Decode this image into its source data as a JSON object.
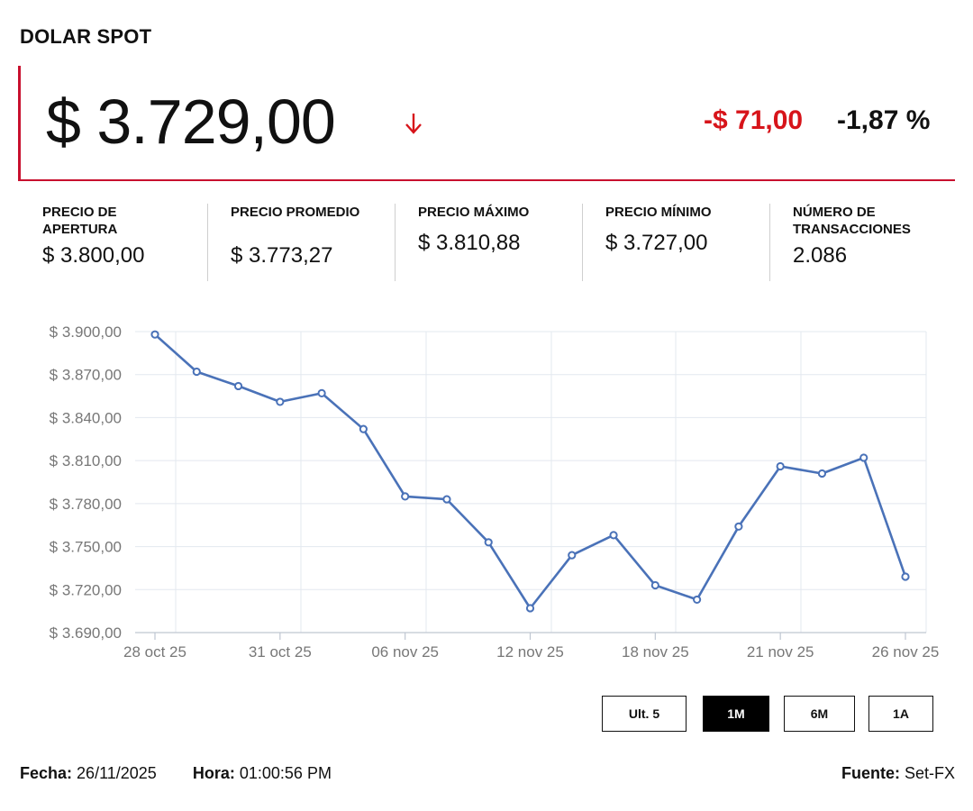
{
  "header": {
    "title": "DOLAR SPOT"
  },
  "price": {
    "value": "$ 3.729,00",
    "direction_icon": "arrow-down-icon",
    "change_abs": "-$ 71,00",
    "change_pct": "-1,87 %",
    "accent_color": "#c8102e",
    "negative_color": "#d7141a"
  },
  "stats": [
    {
      "label": "PRECIO DE APERTURA",
      "value": "$ 3.800,00"
    },
    {
      "label": "PRECIO PROMEDIO",
      "value": "$ 3.773,27"
    },
    {
      "label": "PRECIO MÁXIMO",
      "value": "$ 3.810,88"
    },
    {
      "label": "PRECIO MÍNIMO",
      "value": "$ 3.727,00"
    },
    {
      "label": "NÚMERO DE TRANSACCIONES",
      "value": "2.086"
    }
  ],
  "chart_data": {
    "type": "line",
    "title": "",
    "xlabel": "",
    "ylabel": "",
    "ylim": [
      3690,
      3900
    ],
    "y_ticks": [
      "$ 3.900,00",
      "$ 3.870,00",
      "$ 3.840,00",
      "$ 3.810,00",
      "$ 3.780,00",
      "$ 3.750,00",
      "$ 3.720,00",
      "$ 3.690,00"
    ],
    "y_tick_values": [
      3900,
      3870,
      3840,
      3810,
      3780,
      3750,
      3720,
      3690
    ],
    "x_ticks": [
      "28 oct 25",
      "31 oct 25",
      "06 nov 25",
      "12 nov 25",
      "18 nov 25",
      "21 nov 25",
      "26 nov 25"
    ],
    "x_tick_indices": [
      0,
      3,
      6,
      9,
      12,
      15,
      18
    ],
    "grid": true,
    "line_color": "#4a72b8",
    "series": [
      {
        "values": [
          3898,
          3872,
          3862,
          3851,
          3857,
          3832,
          3785,
          3783,
          3753,
          3707,
          3744,
          3758,
          3723,
          3713,
          3764,
          3806,
          3801,
          3812,
          3729
        ]
      }
    ]
  },
  "range_buttons": {
    "items": [
      {
        "label": "Ult. 5",
        "active": false
      },
      {
        "label": "1M",
        "active": true
      },
      {
        "label": "6M",
        "active": false
      },
      {
        "label": "1A",
        "active": false
      }
    ]
  },
  "footer": {
    "date_label": "Fecha:",
    "date_value": "26/11/2025",
    "time_label": "Hora:",
    "time_value": "01:00:56 PM",
    "source_label": "Fuente:",
    "source_value": "Set-FX"
  }
}
